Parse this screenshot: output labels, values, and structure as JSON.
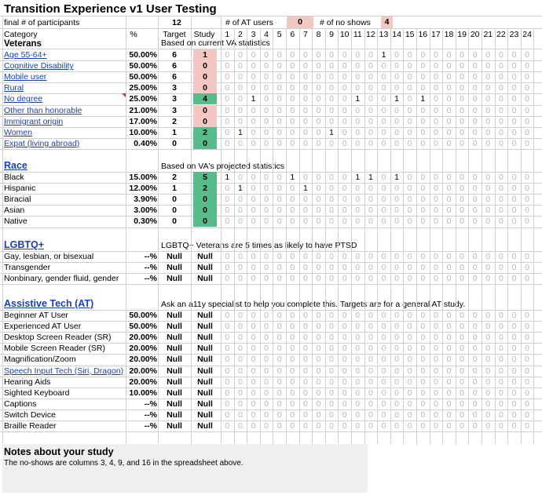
{
  "title": "Transition Experience v1 User Testing",
  "summary": {
    "participants_label": "final # of participants",
    "participants_value": "12",
    "at_users_label": "# of AT users",
    "at_users_value": "0",
    "no_shows_label": "# of no shows",
    "no_shows_value": "4"
  },
  "header": {
    "category": "Category",
    "percent": "%",
    "target": "Target",
    "study": "Study",
    "sessions": [
      "1",
      "2",
      "3",
      "4",
      "5",
      "6",
      "7",
      "8",
      "9",
      "10",
      "11",
      "12",
      "13",
      "14",
      "15",
      "16",
      "17",
      "18",
      "19",
      "20",
      "21",
      "22",
      "23",
      "24"
    ]
  },
  "sections": [
    {
      "title": "Veterans",
      "note": "Based on current VA statistics",
      "rows": [
        {
          "label": "Age 55-64+",
          "link": true,
          "pct": "50.00%",
          "target": "6",
          "study": "1",
          "status": "pink",
          "marks": [
            13
          ]
        },
        {
          "label": "Cognitive Disability",
          "link": true,
          "pct": "50.00%",
          "target": "6",
          "study": "0",
          "status": "pink",
          "marks": []
        },
        {
          "label": "Mobile user",
          "link": true,
          "pct": "50.00%",
          "target": "6",
          "study": "0",
          "status": "pink",
          "marks": []
        },
        {
          "label": "Rural",
          "link": true,
          "pct": "25.00%",
          "target": "3",
          "study": "0",
          "status": "pink",
          "marks": []
        },
        {
          "label": "No degree",
          "link": true,
          "pct": "25.00%",
          "target": "3",
          "study": "4",
          "status": "green",
          "marks": [
            3,
            11,
            14,
            16
          ],
          "comment": true
        },
        {
          "label": "Other than honorable",
          "link": true,
          "pct": "21.00%",
          "target": "3",
          "study": "0",
          "status": "pink",
          "marks": []
        },
        {
          "label": "Immigrant origin",
          "link": true,
          "pct": "17.00%",
          "target": "2",
          "study": "0",
          "status": "pink",
          "marks": []
        },
        {
          "label": "Women",
          "link": true,
          "pct": "10.00%",
          "target": "1",
          "study": "2",
          "status": "green",
          "marks": [
            2,
            9
          ]
        },
        {
          "label": "Expat (living abroad)",
          "link": true,
          "pct": "0.40%",
          "target": "0",
          "study": "0",
          "status": "green",
          "marks": []
        }
      ]
    },
    {
      "title": "Race",
      "note": "Based on VA's projected statistics",
      "rows": [
        {
          "label": "Black",
          "link": false,
          "pct": "15.00%",
          "target": "2",
          "study": "5",
          "status": "green",
          "marks": [
            1,
            6,
            11,
            12,
            14
          ]
        },
        {
          "label": "Hispanic",
          "link": false,
          "pct": "12.00%",
          "target": "1",
          "study": "2",
          "status": "green",
          "marks": [
            2,
            7
          ]
        },
        {
          "label": "Biracial",
          "link": false,
          "pct": "3.90%",
          "target": "0",
          "study": "0",
          "status": "green",
          "marks": []
        },
        {
          "label": "Asian",
          "link": false,
          "pct": "3.00%",
          "target": "0",
          "study": "0",
          "status": "green",
          "marks": []
        },
        {
          "label": "Native",
          "link": false,
          "pct": "0.30%",
          "target": "0",
          "study": "0",
          "status": "green",
          "marks": []
        }
      ]
    },
    {
      "title": "LGBTQ+",
      "note": "LGBTQ+ Veterans are 5 times as likely to have PTSD",
      "rows": [
        {
          "label": "Gay, lesbian, or bisexual",
          "link": false,
          "pct": "--%",
          "target": "Null",
          "study": "Null",
          "status": "none",
          "marks": []
        },
        {
          "label": "Transgender",
          "link": false,
          "pct": "--%",
          "target": "Null",
          "study": "Null",
          "status": "none",
          "marks": []
        },
        {
          "label": "Nonbinary, gender fluid, gender",
          "link": false,
          "pct": "--%",
          "target": "Null",
          "study": "Null",
          "status": "none",
          "marks": []
        }
      ]
    },
    {
      "title": "Assistive Tech (AT)",
      "note": "Ask an a11y specialist to help you complete this. Targets are for a general AT study.",
      "rows": [
        {
          "label": "Beginner AT User",
          "link": false,
          "pct": "50.00%",
          "target": "Null",
          "study": "Null",
          "status": "none",
          "marks": []
        },
        {
          "label": "Experienced AT User",
          "link": false,
          "pct": "50.00%",
          "target": "Null",
          "study": "Null",
          "status": "none",
          "marks": []
        },
        {
          "label": "Desktop Screen Reader (SR)",
          "link": false,
          "pct": "20.00%",
          "target": "Null",
          "study": "Null",
          "status": "none",
          "marks": []
        },
        {
          "label": "Mobile Screen Reader (SR)",
          "link": false,
          "pct": "20.00%",
          "target": "Null",
          "study": "Null",
          "status": "none",
          "marks": []
        },
        {
          "label": "Magnification/Zoom",
          "link": false,
          "pct": "20.00%",
          "target": "Null",
          "study": "Null",
          "status": "none",
          "marks": []
        },
        {
          "label": "Speech Input Tech (Siri, Dragon)",
          "link": true,
          "pct": "20.00%",
          "target": "Null",
          "study": "Null",
          "status": "none",
          "marks": []
        },
        {
          "label": "Hearing Aids",
          "link": false,
          "pct": "20.00%",
          "target": "Null",
          "study": "Null",
          "status": "none",
          "marks": []
        },
        {
          "label": "Sighted Keyboard",
          "link": false,
          "pct": "10.00%",
          "target": "Null",
          "study": "Null",
          "status": "none",
          "marks": []
        },
        {
          "label": "Captions",
          "link": false,
          "pct": "--%",
          "target": "Null",
          "study": "Null",
          "status": "none",
          "marks": []
        },
        {
          "label": "Switch Device",
          "link": false,
          "pct": "--%",
          "target": "Null",
          "study": "Null",
          "status": "none",
          "marks": []
        },
        {
          "label": "Braille Reader",
          "link": false,
          "pct": "--%",
          "target": "Null",
          "study": "Null",
          "status": "none",
          "marks": []
        }
      ]
    }
  ],
  "notes": {
    "title": "Notes about your study",
    "text": "The no-shows are columns 3, 4, 9, and 16 in the spreadsheet above."
  },
  "colors": {
    "pink": "#f4c7c3",
    "green": "#57bb8a",
    "link": "#1a3fb4",
    "grid": "#d0d0d0",
    "muted_zero": "#b7b7b7",
    "notes_bg": "#efefef"
  }
}
